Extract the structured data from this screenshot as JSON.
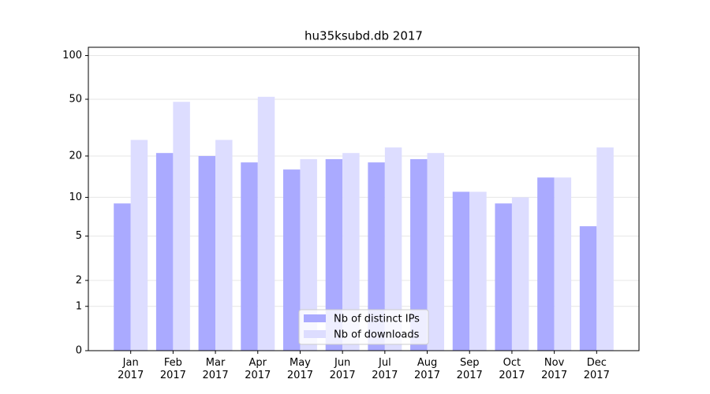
{
  "chart_data": {
    "type": "bar",
    "title": "hu35ksubd.db 2017",
    "categories": [
      "Jan\n2017",
      "Feb\n2017",
      "Mar\n2017",
      "Apr\n2017",
      "May\n2017",
      "Jun\n2017",
      "Jul\n2017",
      "Aug\n2017",
      "Sep\n2017",
      "Oct\n2017",
      "Nov\n2017",
      "Dec\n2017"
    ],
    "series": [
      {
        "name": "Nb of distinct IPs",
        "color": "#aaaaff",
        "values": [
          9,
          21,
          20,
          18,
          16,
          19,
          18,
          19,
          11,
          9,
          14,
          6
        ]
      },
      {
        "name": "Nb of downloads",
        "color": "#ddddff",
        "values": [
          26,
          48,
          26,
          52,
          19,
          21,
          23,
          21,
          11,
          10,
          14,
          23
        ]
      }
    ],
    "yscale": "log1p",
    "ylim": [
      0,
      114
    ],
    "yticks": [
      0,
      1,
      2,
      5,
      10,
      20,
      50,
      100
    ],
    "grid": true,
    "legend": "lower center"
  }
}
